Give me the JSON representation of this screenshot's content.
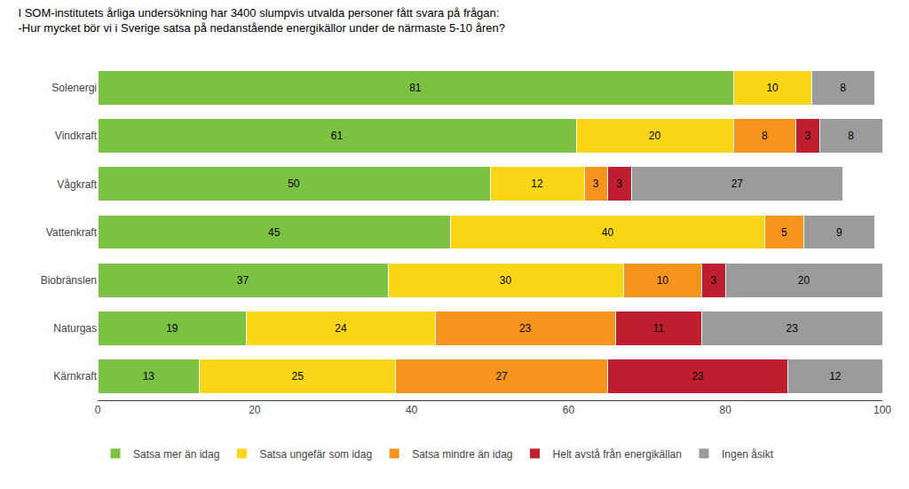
{
  "chart_data": {
    "type": "bar",
    "orientation": "horizontal",
    "stacked": true,
    "title": "I SOM-institutets årliga undersökning har 3400 slumpvis utvalda personer fått svara på frågan:",
    "subtitle": "-Hur mycket bör vi i Sverige satsa på nedanstående energikällor under de närmaste 5-10 åren?",
    "categories": [
      "Solenergi",
      "Vindkraft",
      "Vågkraft",
      "Vattenkraft",
      "Biobränslen",
      "Naturgas",
      "Kärnkraft"
    ],
    "series": [
      {
        "name": "Satsa mer än idag",
        "color": "#7dc142",
        "values": [
          81,
          61,
          50,
          45,
          37,
          19,
          13
        ]
      },
      {
        "name": "Satsa ungefär som idag",
        "color": "#f9d616",
        "values": [
          10,
          20,
          12,
          40,
          30,
          24,
          25
        ]
      },
      {
        "name": "Satsa mindre än idag",
        "color": "#f7941d",
        "values": [
          0,
          8,
          3,
          5,
          10,
          23,
          27
        ]
      },
      {
        "name": "Helt avstå från energikällan",
        "color": "#be1e2d",
        "values": [
          0,
          3,
          3,
          0,
          3,
          11,
          23
        ]
      },
      {
        "name": "Ingen åsikt",
        "color": "#9b9b9b",
        "values": [
          8,
          8,
          27,
          9,
          20,
          23,
          12
        ]
      }
    ],
    "xlim": [
      0,
      100
    ],
    "xticks": [
      0,
      20,
      40,
      60,
      80,
      100
    ],
    "grid": false,
    "legend": "bottom",
    "data_labels": true
  }
}
